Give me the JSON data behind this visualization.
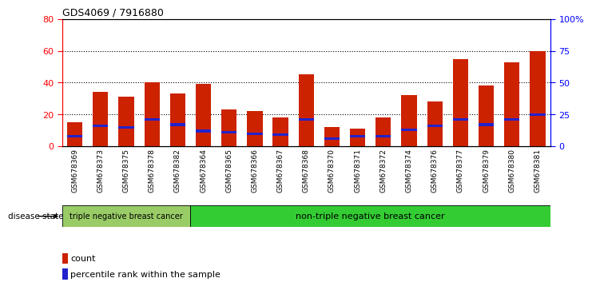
{
  "title": "GDS4069 / 7916880",
  "samples": [
    "GSM678369",
    "GSM678373",
    "GSM678375",
    "GSM678378",
    "GSM678382",
    "GSM678364",
    "GSM678365",
    "GSM678366",
    "GSM678367",
    "GSM678368",
    "GSM678370",
    "GSM678371",
    "GSM678372",
    "GSM678374",
    "GSM678376",
    "GSM678377",
    "GSM678379",
    "GSM678380",
    "GSM678381"
  ],
  "counts": [
    15,
    34,
    31,
    40,
    33,
    39,
    23,
    22,
    18,
    45,
    12,
    11,
    18,
    32,
    28,
    55,
    38,
    53,
    60
  ],
  "percentiles": [
    8,
    16,
    15,
    21,
    17,
    12,
    11,
    10,
    9,
    21,
    6,
    8,
    8,
    13,
    16,
    21,
    17,
    21,
    25
  ],
  "bar_color": "#cc2200",
  "pct_color": "#2222cc",
  "ylim_left": [
    0,
    80
  ],
  "ylim_right": [
    0,
    100
  ],
  "yticks_left": [
    0,
    20,
    40,
    60,
    80
  ],
  "yticks_right": [
    0,
    25,
    50,
    75,
    100
  ],
  "ytick_labels_right": [
    "0",
    "25",
    "50",
    "75",
    "100%"
  ],
  "group1_label": "triple negative breast cancer",
  "group2_label": "non-triple negative breast cancer",
  "group1_count": 5,
  "group2_count": 14,
  "disease_state_label": "disease state",
  "legend_count": "count",
  "legend_pct": "percentile rank within the sample",
  "group1_color": "#99cc66",
  "group2_color": "#33cc33",
  "bg_color": "#ffffff",
  "plot_bg_color": "#ffffff",
  "tick_bg_color": "#cccccc"
}
